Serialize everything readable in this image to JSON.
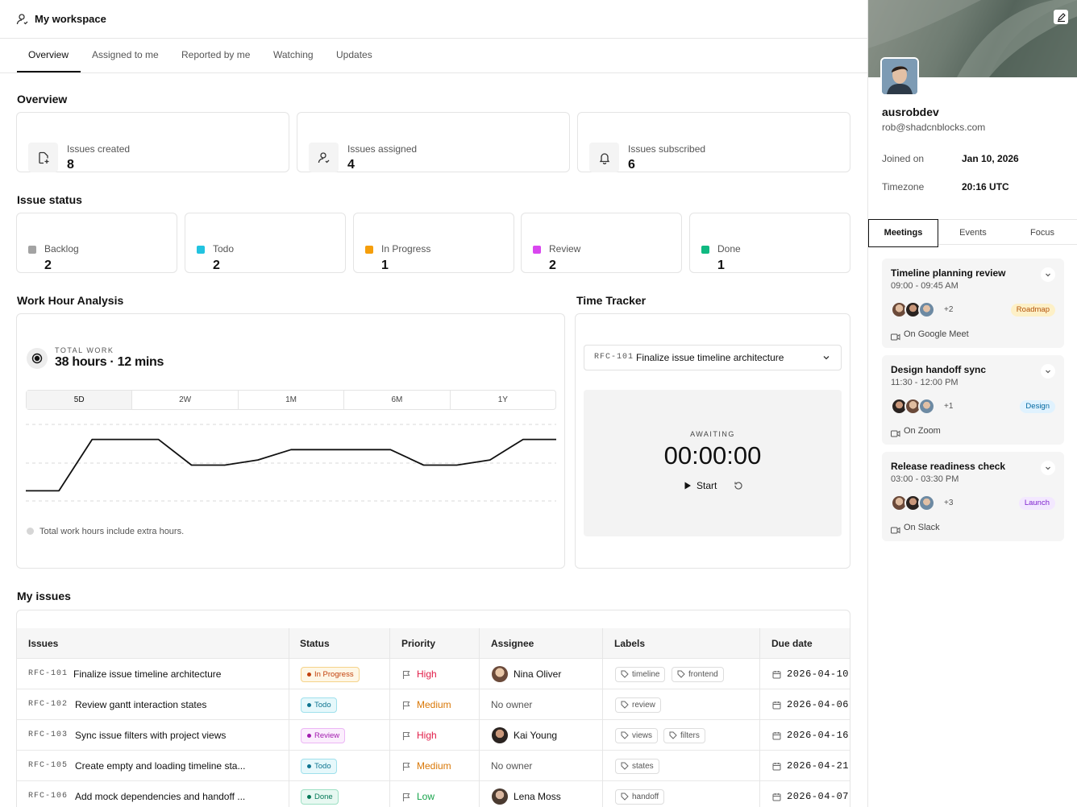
{
  "workspace": {
    "title": "My workspace"
  },
  "tabs": [
    "Overview",
    "Assigned to me",
    "Reported by me",
    "Watching",
    "Updates"
  ],
  "overview": {
    "title": "Overview",
    "cards": [
      {
        "label": "Issues created",
        "value": "8",
        "icon": "file-plus-icon"
      },
      {
        "label": "Issues assigned",
        "value": "4",
        "icon": "user-check-icon"
      },
      {
        "label": "Issues subscribed",
        "value": "6",
        "icon": "bell-icon"
      }
    ]
  },
  "issue_status": {
    "title": "Issue status",
    "items": [
      {
        "label": "Backlog",
        "value": "2",
        "color": "#a3a3a3"
      },
      {
        "label": "Todo",
        "value": "2",
        "color": "#22c3e0"
      },
      {
        "label": "In Progress",
        "value": "1",
        "color": "#f59e0b"
      },
      {
        "label": "Review",
        "value": "2",
        "color": "#d946ef"
      },
      {
        "label": "Done",
        "value": "1",
        "color": "#10b981"
      }
    ]
  },
  "work_hours": {
    "title": "Work Hour Analysis",
    "caption": "TOTAL WORK",
    "total": "38 hours · 12 mins",
    "ranges": [
      "5D",
      "2W",
      "1M",
      "6M",
      "1Y"
    ],
    "active_range": "5D",
    "note": "Total work hours include extra hours."
  },
  "chart_data": {
    "type": "line",
    "series": [
      {
        "values": [
          0,
          0,
          1,
          1,
          1,
          0.5,
          0.5,
          0.6,
          0.8,
          0.8,
          0.8,
          0.8,
          0.5,
          0.5,
          0.6,
          1,
          1
        ]
      }
    ],
    "ylim": [
      -0.4,
      1.4
    ],
    "grid": true
  },
  "time_tracker": {
    "title": "Time Tracker",
    "issue_id": "RFC-101",
    "issue_name": "Finalize issue timeline architecture",
    "state": "AWAITING",
    "time": "00:00:00",
    "start_label": "Start"
  },
  "my_issues": {
    "title": "My issues",
    "columns": [
      "Issues",
      "Status",
      "Priority",
      "Assignee",
      "Labels",
      "Due date"
    ],
    "rows": [
      {
        "id": "RFC-101",
        "name": "Finalize issue timeline architecture",
        "status": "In Progress",
        "priority": "High",
        "assignee": "Nina Oliver",
        "labels": [
          "timeline",
          "frontend"
        ],
        "due": "2026-04-10"
      },
      {
        "id": "RFC-102",
        "name": "Review gantt interaction states",
        "status": "Todo",
        "priority": "Medium",
        "assignee": "No owner",
        "labels": [
          "review"
        ],
        "due": "2026-04-06"
      },
      {
        "id": "RFC-103",
        "name": "Sync issue filters with project views",
        "status": "Review",
        "priority": "High",
        "assignee": "Kai Young",
        "labels": [
          "views",
          "filters"
        ],
        "due": "2026-04-16"
      },
      {
        "id": "RFC-105",
        "name": "Create empty and loading timeline sta...",
        "status": "Todo",
        "priority": "Medium",
        "assignee": "No owner",
        "labels": [
          "states"
        ],
        "due": "2026-04-21"
      },
      {
        "id": "RFC-106",
        "name": "Add mock dependencies and handoff ...",
        "status": "Done",
        "priority": "Low",
        "assignee": "Lena Moss",
        "labels": [
          "handoff"
        ],
        "due": "2026-04-07"
      }
    ]
  },
  "profile": {
    "username": "ausrobdev",
    "email": "rob@shadcnblocks.com",
    "joined_label": "Joined on",
    "joined_value": "Jan 10, 2026",
    "tz_label": "Timezone",
    "tz_value": "20:16 UTC"
  },
  "side_tabs": [
    "Meetings",
    "Events",
    "Focus"
  ],
  "meetings": [
    {
      "title": "Timeline planning review",
      "time": "09:00 - 09:45 AM",
      "more": "+2",
      "tag": "Roadmap",
      "location": "On Google Meet"
    },
    {
      "title": "Design handoff sync",
      "time": "11:30 - 12:00 PM",
      "more": "+1",
      "tag": "Design",
      "location": "On Zoom"
    },
    {
      "title": "Release readiness check",
      "time": "03:00 - 03:30 PM",
      "more": "+3",
      "tag": "Launch",
      "location": "On Slack"
    }
  ]
}
